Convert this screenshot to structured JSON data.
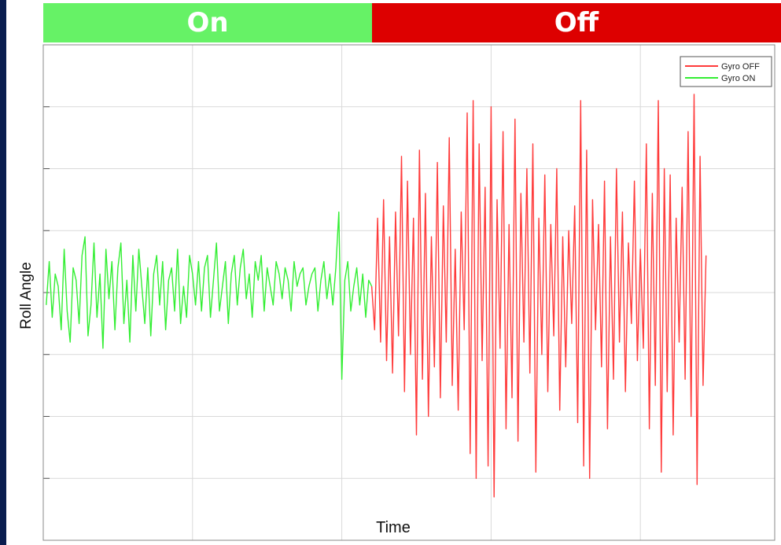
{
  "header": {
    "on_label": "On",
    "off_label": "Off",
    "on_color": "#66f266",
    "off_color": "#dd0000"
  },
  "chart_data": {
    "type": "line",
    "xlabel": "Time",
    "ylabel": "Roll Angle",
    "ylim": [
      -4,
      4
    ],
    "grid": true,
    "legend": {
      "placement": "top-right",
      "entries": [
        "Gyro OFF",
        "Gyro ON"
      ]
    },
    "x_tick_labels_shown": false,
    "y_tick_labels_shown": false,
    "series": [
      {
        "name": "Gyro ON",
        "color": "#33ee33",
        "x": [
          0.02,
          0.04,
          0.06,
          0.08,
          0.1,
          0.12,
          0.14,
          0.16,
          0.18,
          0.2,
          0.22,
          0.24,
          0.26,
          0.28,
          0.3,
          0.32,
          0.34,
          0.36,
          0.38,
          0.4,
          0.42,
          0.44,
          0.46,
          0.48,
          0.5,
          0.52,
          0.54,
          0.56,
          0.58,
          0.6,
          0.62,
          0.64,
          0.66,
          0.68,
          0.7,
          0.72,
          0.74,
          0.76,
          0.78,
          0.8,
          0.82,
          0.84,
          0.86,
          0.88,
          0.9,
          0.92,
          0.94,
          0.96,
          0.98,
          1.0,
          1.02,
          1.04,
          1.06,
          1.08,
          1.1,
          1.12,
          1.14,
          1.16,
          1.18,
          1.2,
          1.22,
          1.24,
          1.26,
          1.28,
          1.3,
          1.32,
          1.34,
          1.36,
          1.38,
          1.4,
          1.42,
          1.44,
          1.46,
          1.48,
          1.5,
          1.52,
          1.54,
          1.56,
          1.58,
          1.6,
          1.62,
          1.64,
          1.66,
          1.68,
          1.7,
          1.72,
          1.74,
          1.76,
          1.78,
          1.8,
          1.82,
          1.84,
          1.86,
          1.88,
          1.9,
          1.92,
          1.94,
          1.96,
          1.98,
          2.0,
          2.02,
          2.04,
          2.06,
          2.08,
          2.1,
          2.12,
          2.14,
          2.16,
          2.18,
          2.2
        ],
        "values": [
          -0.2,
          0.5,
          -0.4,
          0.3,
          0.1,
          -0.6,
          0.7,
          -0.3,
          -0.8,
          0.4,
          0.2,
          -0.5,
          0.6,
          0.9,
          -0.7,
          -0.2,
          0.8,
          -0.4,
          0.3,
          -0.9,
          0.7,
          -0.1,
          0.5,
          -0.6,
          0.4,
          0.8,
          -0.5,
          0.2,
          -0.8,
          0.6,
          -0.3,
          0.7,
          0.1,
          -0.5,
          0.4,
          -0.7,
          0.3,
          0.6,
          -0.2,
          0.5,
          -0.6,
          0.2,
          0.4,
          -0.3,
          0.7,
          -0.5,
          0.1,
          -0.4,
          0.6,
          0.3,
          -0.2,
          0.5,
          -0.3,
          0.4,
          0.6,
          -0.4,
          0.2,
          0.8,
          -0.3,
          0.1,
          0.5,
          -0.5,
          0.3,
          0.6,
          -0.2,
          0.4,
          0.7,
          -0.1,
          0.3,
          -0.4,
          0.5,
          0.2,
          0.6,
          -0.3,
          0.4,
          0.1,
          -0.2,
          0.5,
          0.3,
          -0.1,
          0.4,
          0.2,
          -0.3,
          0.5,
          0.1,
          0.3,
          0.4,
          -0.2,
          0.1,
          0.3,
          0.4,
          -0.3,
          0.2,
          0.5,
          -0.1,
          0.3,
          -0.2,
          0.4,
          1.3,
          -1.4,
          0.2,
          0.5,
          -0.3,
          0.1,
          0.4,
          -0.2,
          0.3,
          -0.4,
          0.2,
          0.1
        ]
      },
      {
        "name": "Gyro OFF",
        "color": "#ff3b3b",
        "x": [
          2.2,
          2.22,
          2.24,
          2.26,
          2.28,
          2.3,
          2.32,
          2.34,
          2.36,
          2.38,
          2.4,
          2.42,
          2.44,
          2.46,
          2.48,
          2.5,
          2.52,
          2.54,
          2.56,
          2.58,
          2.6,
          2.62,
          2.64,
          2.66,
          2.68,
          2.7,
          2.72,
          2.74,
          2.76,
          2.78,
          2.8,
          2.82,
          2.84,
          2.86,
          2.88,
          2.9,
          2.92,
          2.94,
          2.96,
          2.98,
          3.0,
          3.02,
          3.04,
          3.06,
          3.08,
          3.1,
          3.12,
          3.14,
          3.16,
          3.18,
          3.2,
          3.22,
          3.24,
          3.26,
          3.28,
          3.3,
          3.32,
          3.34,
          3.36,
          3.38,
          3.4,
          3.42,
          3.44,
          3.46,
          3.48,
          3.5,
          3.52,
          3.54,
          3.56,
          3.58,
          3.6,
          3.62,
          3.64,
          3.66,
          3.68,
          3.7,
          3.72,
          3.74,
          3.76,
          3.78,
          3.8,
          3.82,
          3.84,
          3.86,
          3.88,
          3.9,
          3.92,
          3.94,
          3.96,
          3.98,
          4.0,
          4.02,
          4.04,
          4.06,
          4.08,
          4.1,
          4.12,
          4.14,
          4.16,
          4.18,
          4.2,
          4.22,
          4.24,
          4.26,
          4.28,
          4.3,
          4.32,
          4.34,
          4.36,
          4.38,
          4.4,
          4.42,
          4.44
        ],
        "values": [
          0.1,
          -0.6,
          1.2,
          -0.8,
          1.5,
          -1.1,
          0.9,
          -1.3,
          1.3,
          -0.7,
          2.2,
          -1.6,
          1.8,
          -1.0,
          1.2,
          -2.3,
          2.3,
          -1.4,
          1.6,
          -2.0,
          0.9,
          -1.2,
          2.1,
          -1.7,
          1.4,
          -0.8,
          2.5,
          -1.5,
          0.7,
          -1.9,
          1.3,
          -0.6,
          2.9,
          -2.6,
          3.1,
          -3.0,
          2.4,
          -1.1,
          1.7,
          -2.8,
          3.0,
          -3.3,
          1.5,
          -0.9,
          2.6,
          -2.2,
          1.1,
          -1.7,
          2.8,
          -2.4,
          1.6,
          -0.8,
          2.0,
          -1.3,
          2.4,
          -2.9,
          1.2,
          -1.0,
          1.9,
          -1.6,
          1.1,
          -0.7,
          2.0,
          -1.9,
          0.9,
          -1.2,
          1.0,
          -0.5,
          1.4,
          -2.1,
          3.1,
          -2.8,
          2.3,
          -3.0,
          1.5,
          -0.6,
          1.1,
          -1.2,
          1.8,
          -2.2,
          0.9,
          -1.4,
          2.0,
          -0.8,
          1.3,
          -1.6,
          0.8,
          -0.5,
          1.8,
          -1.1,
          0.7,
          -0.9,
          2.4,
          -2.2,
          1.6,
          -1.5,
          3.1,
          -2.9,
          2.0,
          -1.6,
          1.9,
          -2.3,
          1.2,
          -0.8,
          1.7,
          -1.4,
          2.6,
          -2.0,
          3.2,
          -3.1,
          2.2,
          -1.5,
          0.6
        ]
      }
    ]
  }
}
